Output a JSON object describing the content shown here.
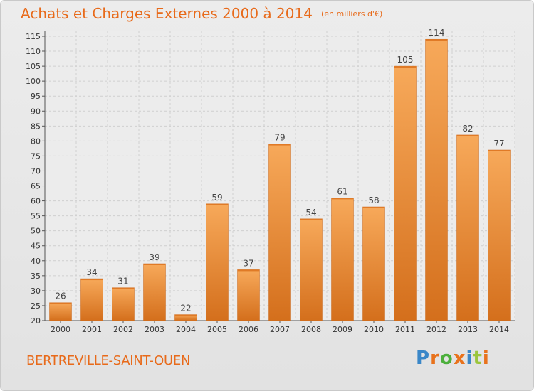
{
  "chart_data": {
    "type": "bar",
    "title": "Achats et Charges Externes 2000 à 2014",
    "subtitle": "(en milliers d'€)",
    "xlabel": "",
    "ylabel": "",
    "categories": [
      "2000",
      "2001",
      "2002",
      "2003",
      "2004",
      "2005",
      "2006",
      "2007",
      "2008",
      "2009",
      "2010",
      "2011",
      "2012",
      "2013",
      "2014"
    ],
    "values": [
      26,
      34,
      31,
      39,
      22,
      59,
      37,
      79,
      54,
      61,
      58,
      105,
      114,
      82,
      77
    ],
    "ylim": [
      20,
      115
    ],
    "yticks": [
      20,
      25,
      30,
      35,
      40,
      45,
      50,
      55,
      60,
      65,
      70,
      75,
      80,
      85,
      90,
      95,
      100,
      105,
      110,
      115
    ],
    "grid": true,
    "bar_color": "#f0913d",
    "bar_color_light": "#f7a95a",
    "bar_color_dark": "#d46f1c",
    "title_color": "#e86a1a"
  },
  "footer": {
    "commune": "BERTREVILLE-SAINT-OUEN",
    "logo_letters": [
      "P",
      "r",
      "o",
      "x",
      "i",
      "t",
      "i"
    ],
    "logo_colors": [
      "#3a87c8",
      "#e8721c",
      "#4caf3c",
      "#e8721c",
      "#3a87c8",
      "#9bc53d",
      "#e8721c"
    ]
  }
}
